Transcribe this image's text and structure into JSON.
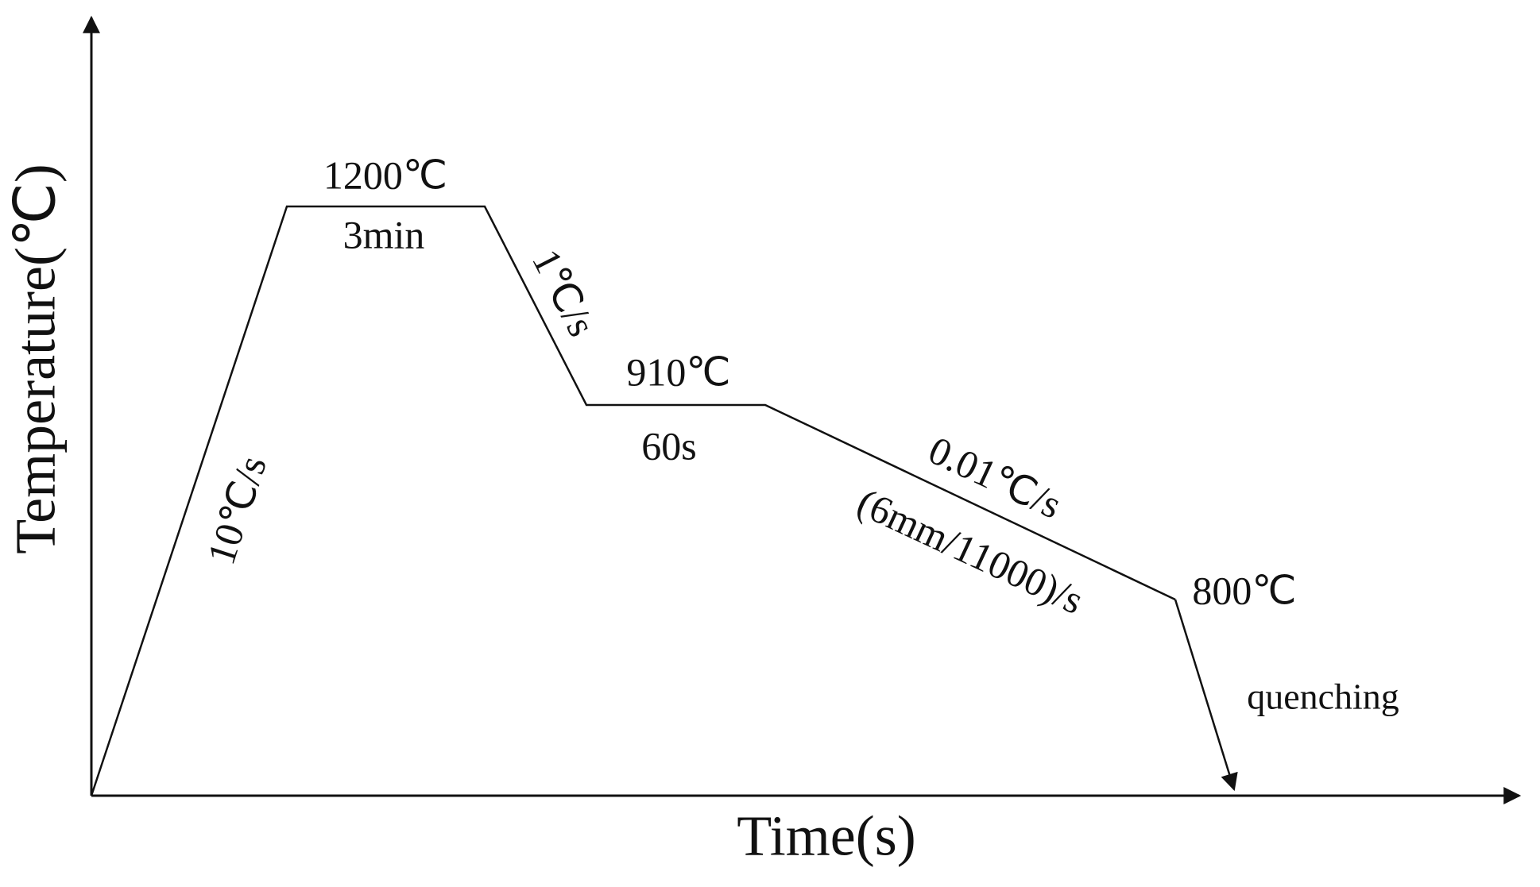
{
  "axes": {
    "y_label": "Temperature(℃)",
    "x_label": "Time(s)"
  },
  "labels": {
    "peak_temp": "1200℃",
    "peak_hold": "3min",
    "heating_rate": "10℃/s",
    "cooling_rate_1": "1℃/s",
    "mid_temp": "910℃",
    "mid_hold": "60s",
    "cooling_rate_2": "0.01℃/s",
    "cooling_rate_2_detail": "(6mm/11000)/s",
    "end_temp": "800℃",
    "quench": "quenching"
  }
}
